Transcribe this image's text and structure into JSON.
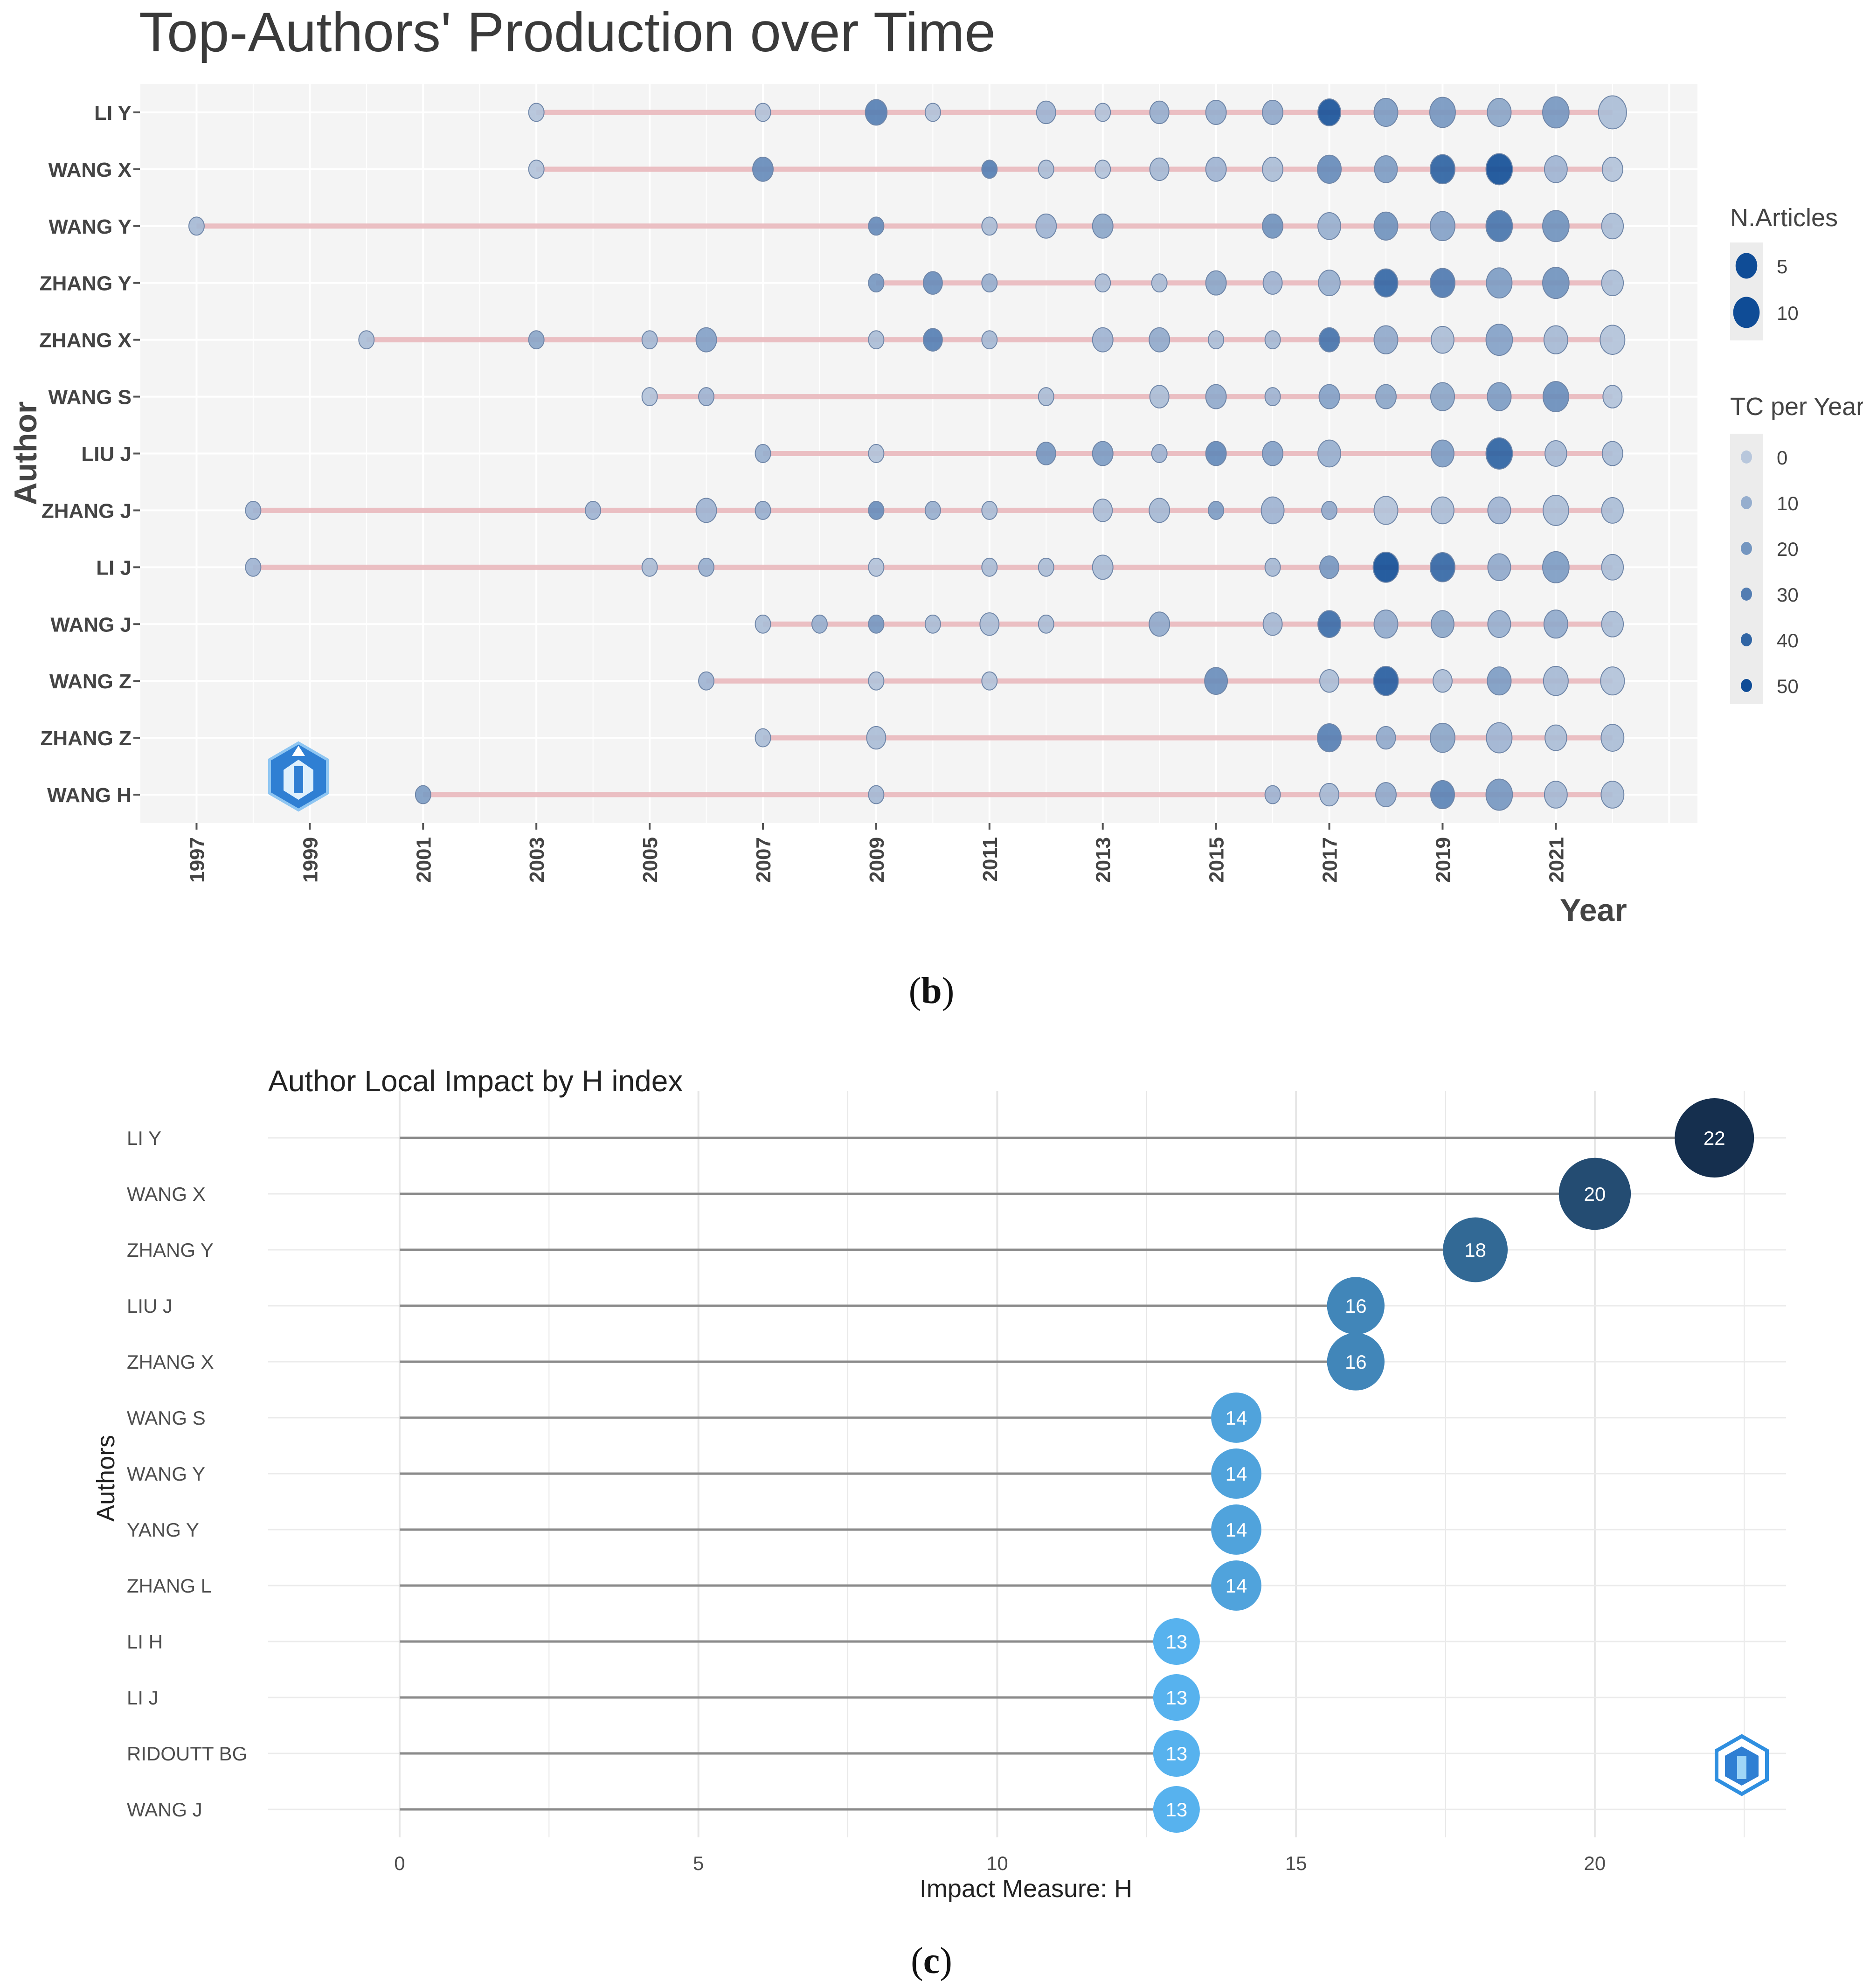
{
  "colors": {
    "panel_bg": "#f4f4f4",
    "grid": "#ffffff",
    "segment": "#e8b4b8",
    "bubble_dark": "#0f4c96",
    "bubble_light": "#b8c7dc",
    "h_dark": "#152f4e",
    "h_light": "#57b2ee",
    "h_line": "#8a8a8a"
  },
  "labels": {
    "panel_b": "b",
    "panel_c": "c"
  },
  "icons": {
    "logo": "bibliometrix-logo-icon"
  },
  "chart_data": [
    {
      "type": "scatter",
      "title": "Top-Authors' Production over Time",
      "xlabel": "Year",
      "ylabel": "Author",
      "xlim": [
        1996,
        2023.5
      ],
      "x_ticks": [
        1997,
        1999,
        2001,
        2003,
        2005,
        2007,
        2009,
        2011,
        2013,
        2015,
        2017,
        2019,
        2021
      ],
      "categories": [
        "LI Y",
        "WANG X",
        "WANG Y",
        "ZHANG Y",
        "ZHANG X",
        "WANG S",
        "LIU J",
        "ZHANG J",
        "LI J",
        "WANG J",
        "WANG Z",
        "ZHANG Z",
        "WANG H"
      ],
      "series": [
        {
          "name": "LI Y",
          "points": [
            [
              2003,
              1,
              2
            ],
            [
              2007,
              1,
              2
            ],
            [
              2009,
              5,
              30
            ],
            [
              2010,
              1,
              2
            ],
            [
              2012,
              3,
              8
            ],
            [
              2013,
              1,
              2
            ],
            [
              2014,
              3,
              10
            ],
            [
              2015,
              4,
              10
            ],
            [
              2016,
              4,
              12
            ],
            [
              2017,
              6,
              48
            ],
            [
              2018,
              7,
              18
            ],
            [
              2019,
              9,
              20
            ],
            [
              2020,
              7,
              14
            ],
            [
              2021,
              10,
              20
            ],
            [
              2022,
              12,
              4
            ]
          ]
        },
        {
          "name": "WANG X",
          "points": [
            [
              2003,
              1,
              2
            ],
            [
              2007,
              4,
              25
            ],
            [
              2011,
              1,
              30
            ],
            [
              2012,
              1,
              4
            ],
            [
              2013,
              1,
              2
            ],
            [
              2014,
              3,
              6
            ],
            [
              2015,
              4,
              8
            ],
            [
              2016,
              4,
              4
            ],
            [
              2017,
              7,
              25
            ],
            [
              2018,
              6,
              18
            ],
            [
              2019,
              8,
              42
            ],
            [
              2020,
              10,
              52
            ],
            [
              2021,
              6,
              8
            ],
            [
              2022,
              4,
              2
            ]
          ]
        },
        {
          "name": "WANG Y",
          "points": [
            [
              1997,
              1,
              6
            ],
            [
              2009,
              1,
              25
            ],
            [
              2011,
              1,
              4
            ],
            [
              2012,
              4,
              8
            ],
            [
              2013,
              4,
              14
            ],
            [
              2016,
              4,
              22
            ],
            [
              2017,
              6,
              10
            ],
            [
              2018,
              7,
              22
            ],
            [
              2019,
              8,
              16
            ],
            [
              2020,
              10,
              34
            ],
            [
              2021,
              10,
              22
            ],
            [
              2022,
              5,
              4
            ]
          ]
        },
        {
          "name": "ZHANG Y",
          "points": [
            [
              2009,
              1,
              20
            ],
            [
              2010,
              3,
              24
            ],
            [
              2011,
              1,
              10
            ],
            [
              2013,
              1,
              4
            ],
            [
              2014,
              1,
              4
            ],
            [
              2015,
              4,
              14
            ],
            [
              2016,
              3,
              8
            ],
            [
              2017,
              5,
              10
            ],
            [
              2018,
              7,
              40
            ],
            [
              2019,
              8,
              32
            ],
            [
              2020,
              9,
              18
            ],
            [
              2021,
              10,
              22
            ],
            [
              2022,
              5,
              4
            ]
          ]
        },
        {
          "name": "ZHANG X",
          "points": [
            [
              2000,
              1,
              4
            ],
            [
              2003,
              1,
              14
            ],
            [
              2005,
              1,
              6
            ],
            [
              2006,
              4,
              16
            ],
            [
              2009,
              1,
              4
            ],
            [
              2010,
              3,
              30
            ],
            [
              2011,
              1,
              6
            ],
            [
              2013,
              4,
              8
            ],
            [
              2014,
              4,
              12
            ],
            [
              2015,
              1,
              4
            ],
            [
              2016,
              1,
              6
            ],
            [
              2017,
              4,
              35
            ],
            [
              2018,
              7,
              12
            ],
            [
              2019,
              6,
              4
            ],
            [
              2020,
              10,
              16
            ],
            [
              2021,
              7,
              6
            ],
            [
              2022,
              8,
              2
            ]
          ]
        },
        {
          "name": "WANG S",
          "points": [
            [
              2005,
              1,
              2
            ],
            [
              2006,
              1,
              8
            ],
            [
              2012,
              1,
              4
            ],
            [
              2014,
              3,
              4
            ],
            [
              2015,
              4,
              12
            ],
            [
              2016,
              1,
              8
            ],
            [
              2017,
              4,
              16
            ],
            [
              2018,
              4,
              14
            ],
            [
              2019,
              7,
              14
            ],
            [
              2020,
              7,
              18
            ],
            [
              2021,
              9,
              24
            ],
            [
              2022,
              3,
              2
            ]
          ]
        },
        {
          "name": "LIU J",
          "points": [
            [
              2007,
              1,
              10
            ],
            [
              2009,
              1,
              2
            ],
            [
              2012,
              3,
              20
            ],
            [
              2013,
              4,
              18
            ],
            [
              2014,
              1,
              8
            ],
            [
              2015,
              4,
              26
            ],
            [
              2016,
              4,
              16
            ],
            [
              2017,
              6,
              10
            ],
            [
              2019,
              6,
              18
            ],
            [
              2020,
              10,
              42
            ],
            [
              2021,
              5,
              6
            ],
            [
              2022,
              4,
              4
            ]
          ]
        },
        {
          "name": "ZHANG J",
          "points": [
            [
              1998,
              1,
              8
            ],
            [
              2004,
              1,
              8
            ],
            [
              2006,
              4,
              8
            ],
            [
              2007,
              1,
              10
            ],
            [
              2009,
              1,
              24
            ],
            [
              2010,
              1,
              10
            ],
            [
              2011,
              1,
              4
            ],
            [
              2013,
              3,
              4
            ],
            [
              2014,
              4,
              6
            ],
            [
              2015,
              1,
              18
            ],
            [
              2016,
              6,
              8
            ],
            [
              2017,
              1,
              12
            ],
            [
              2018,
              7,
              2
            ],
            [
              2019,
              6,
              4
            ],
            [
              2020,
              6,
              8
            ],
            [
              2021,
              9,
              4
            ],
            [
              2022,
              5,
              4
            ]
          ]
        },
        {
          "name": "LI J",
          "points": [
            [
              1998,
              1,
              8
            ],
            [
              2005,
              1,
              4
            ],
            [
              2006,
              1,
              10
            ],
            [
              2009,
              1,
              2
            ],
            [
              2011,
              1,
              4
            ],
            [
              2012,
              1,
              4
            ],
            [
              2013,
              4,
              4
            ],
            [
              2016,
              1,
              6
            ],
            [
              2017,
              3,
              20
            ],
            [
              2018,
              9,
              50
            ],
            [
              2019,
              8,
              40
            ],
            [
              2020,
              6,
              12
            ],
            [
              2021,
              10,
              18
            ],
            [
              2022,
              5,
              4
            ]
          ]
        },
        {
          "name": "WANG J",
          "points": [
            [
              2007,
              1,
              4
            ],
            [
              2008,
              1,
              10
            ],
            [
              2009,
              1,
              20
            ],
            [
              2010,
              1,
              4
            ],
            [
              2011,
              3,
              4
            ],
            [
              2012,
              1,
              4
            ],
            [
              2014,
              4,
              12
            ],
            [
              2016,
              3,
              6
            ],
            [
              2017,
              6,
              38
            ],
            [
              2018,
              7,
              12
            ],
            [
              2019,
              6,
              14
            ],
            [
              2020,
              6,
              10
            ],
            [
              2021,
              7,
              12
            ],
            [
              2022,
              5,
              4
            ]
          ]
        },
        {
          "name": "WANG Z",
          "points": [
            [
              2006,
              1,
              8
            ],
            [
              2009,
              1,
              2
            ],
            [
              2011,
              1,
              2
            ],
            [
              2015,
              6,
              24
            ],
            [
              2017,
              3,
              4
            ],
            [
              2018,
              8,
              44
            ],
            [
              2019,
              3,
              4
            ],
            [
              2020,
              7,
              18
            ],
            [
              2021,
              8,
              6
            ],
            [
              2022,
              7,
              2
            ]
          ]
        },
        {
          "name": "ZHANG Z",
          "points": [
            [
              2007,
              1,
              4
            ],
            [
              2009,
              3,
              4
            ],
            [
              2017,
              7,
              30
            ],
            [
              2018,
              3,
              12
            ],
            [
              2019,
              8,
              14
            ],
            [
              2020,
              9,
              8
            ],
            [
              2021,
              5,
              4
            ],
            [
              2022,
              6,
              4
            ]
          ]
        },
        {
          "name": "WANG H",
          "points": [
            [
              2001,
              1,
              18
            ],
            [
              2009,
              1,
              6
            ],
            [
              2016,
              1,
              8
            ],
            [
              2017,
              3,
              6
            ],
            [
              2018,
              4,
              12
            ],
            [
              2019,
              7,
              28
            ],
            [
              2020,
              10,
              20
            ],
            [
              2021,
              6,
              6
            ],
            [
              2022,
              6,
              4
            ]
          ]
        }
      ],
      "legend_size": {
        "title": "N.Articles",
        "values": [
          5,
          10
        ]
      },
      "legend_color": {
        "title": "TC per Year",
        "values": [
          0,
          10,
          20,
          30,
          40,
          50
        ]
      }
    },
    {
      "type": "scatter",
      "title": "Author Local Impact by H index",
      "xlabel": "Impact Measure: H",
      "ylabel": "Authors",
      "xlim": [
        -2.2,
        23.2
      ],
      "x_ticks": [
        0,
        5,
        10,
        15,
        20
      ],
      "categories": [
        "LI Y",
        "WANG X",
        "ZHANG Y",
        "LIU J",
        "ZHANG X",
        "WANG S",
        "WANG Y",
        "YANG Y",
        "ZHANG L",
        "LI H",
        "LI J",
        "RIDOUTT BG",
        "WANG J"
      ],
      "values": [
        22,
        20,
        18,
        16,
        16,
        14,
        14,
        14,
        14,
        13,
        13,
        13,
        13
      ],
      "value_labels": [
        "22",
        "20",
        "18",
        "16",
        "16",
        "14",
        "14",
        "14",
        "14",
        "13",
        "13",
        "13",
        "13"
      ]
    }
  ]
}
